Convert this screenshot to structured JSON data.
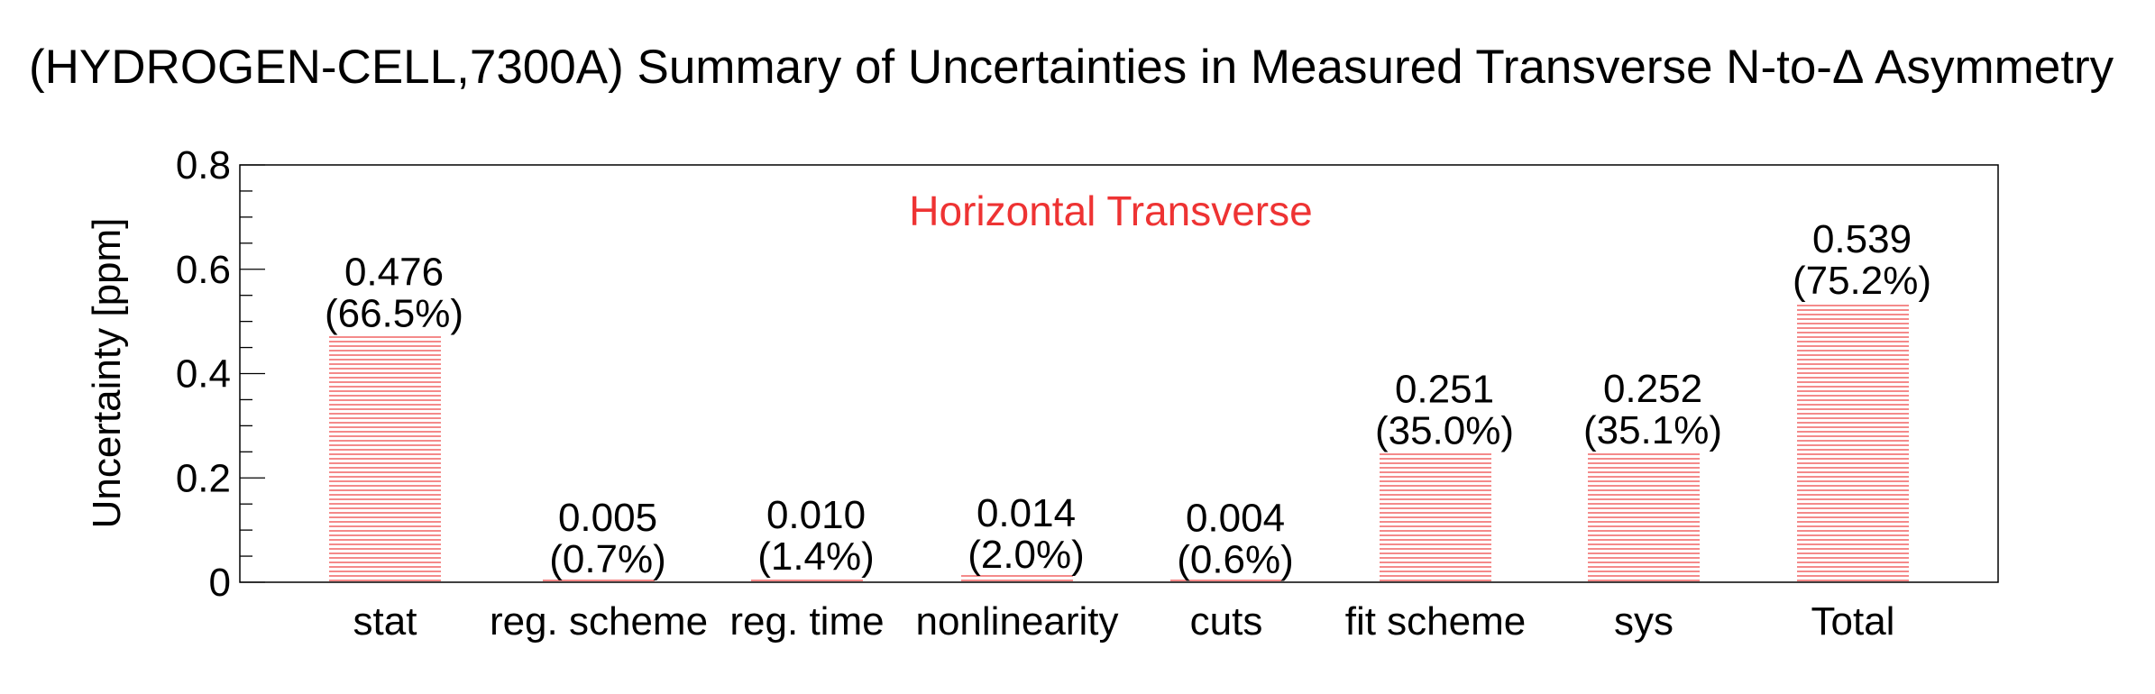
{
  "chart_data": {
    "type": "bar",
    "title": "(HYDROGEN-CELL,7300A) Summary of Uncertainties in Measured Transverse N-to-Δ Asymmetry",
    "ylabel": "Uncertainty [ppm]",
    "xlabel": "",
    "annotation": "Horizontal Transverse",
    "annotation_color": "#ee3333",
    "bar_color": "#ee4444",
    "bar_fill_pattern": "horizontal-hatch",
    "ylim": [
      0,
      0.8
    ],
    "yticks": [
      "0",
      "0.2",
      "0.4",
      "0.6",
      "0.8"
    ],
    "ytick_values": [
      0,
      0.2,
      0.4,
      0.6,
      0.8
    ],
    "categories": [
      "stat",
      "reg. scheme",
      "reg. time",
      "nonlinearity",
      "cuts",
      "fit scheme",
      "sys",
      "Total"
    ],
    "values": [
      0.476,
      0.005,
      0.01,
      0.014,
      0.004,
      0.251,
      0.252,
      0.539
    ],
    "value_labels": [
      "0.476",
      "0.005",
      "0.010",
      "0.014",
      "0.004",
      "0.251",
      "0.252",
      "0.539"
    ],
    "percent_labels": [
      "(66.5%)",
      "(0.7%)",
      "(1.4%)",
      "(2.0%)",
      "(0.6%)",
      "(35.0%)",
      "(35.1%)",
      "(75.2%)"
    ],
    "grid": false,
    "legend": "none"
  }
}
